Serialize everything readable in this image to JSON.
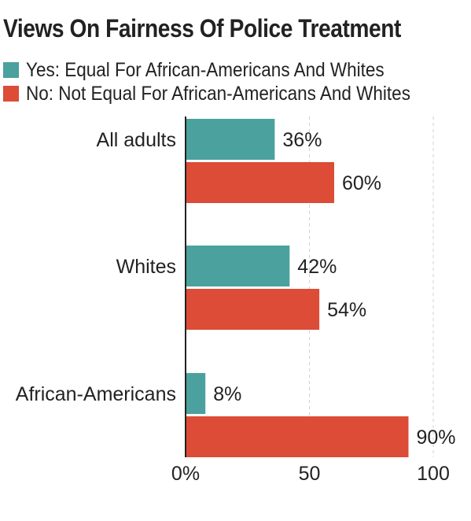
{
  "chart_data": {
    "type": "bar",
    "orientation": "horizontal",
    "title": "Views On Fairness Of Police Treatment",
    "categories": [
      "All adults",
      "Whites",
      "African-Americans"
    ],
    "series": [
      {
        "name": "Yes: Equal For African-Americans And Whites",
        "color": "#4aa19d",
        "values": [
          36,
          42,
          8
        ],
        "labels": [
          "36%",
          "42%",
          "8%"
        ]
      },
      {
        "name": "No: Not Equal For African-Americans And Whites",
        "color": "#dc4c36",
        "values": [
          60,
          54,
          90
        ],
        "labels": [
          "60%",
          "54%",
          "90%"
        ]
      }
    ],
    "xlim": [
      0,
      100
    ],
    "x_ticks": [
      0,
      50,
      100
    ],
    "x_tick_labels": [
      "0%",
      "50",
      "100"
    ],
    "grid": "vertical dashed",
    "legend_position": "top-left"
  }
}
